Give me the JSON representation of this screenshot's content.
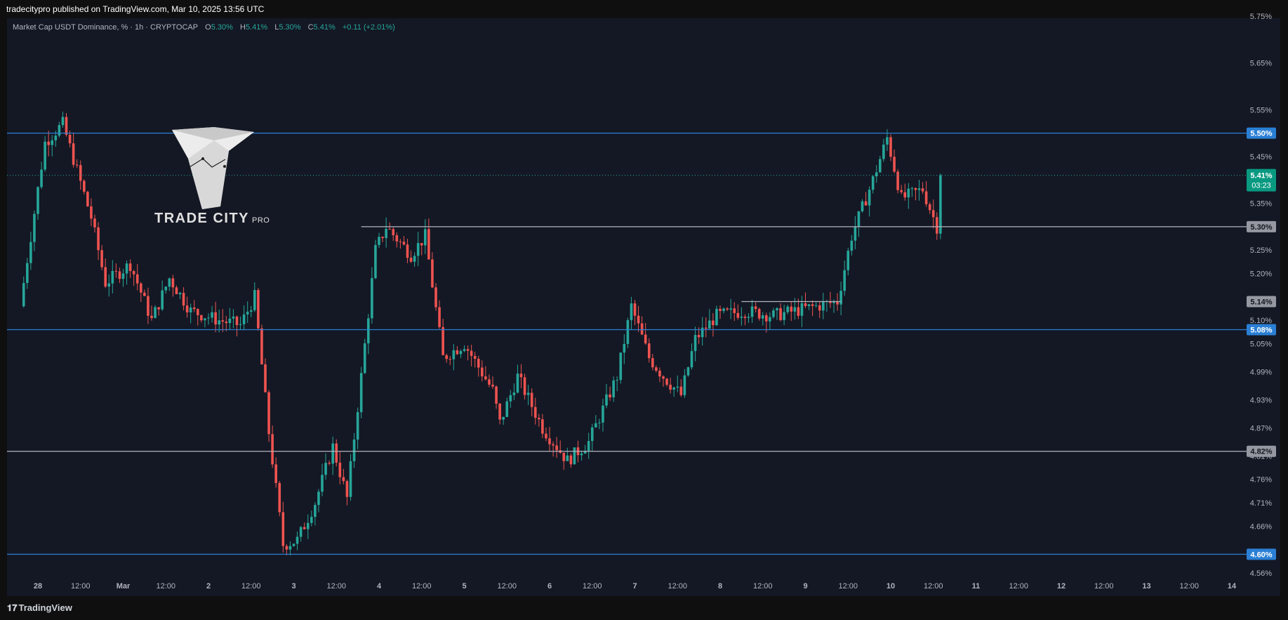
{
  "header": {
    "publish_line": "tradecitypro published on TradingView.com, Mar 10, 2025 13:56 UTC"
  },
  "legend": {
    "symbol": "Market Cap USDT Dominance, % · 1h · CRYPTOCAP",
    "o_label": "O",
    "o_value": "5.30%",
    "h_label": "H",
    "h_value": "5.41%",
    "l_label": "L",
    "l_value": "5.30%",
    "c_label": "C",
    "c_value": "5.41%",
    "change": "+0.11 (+2.01%)"
  },
  "watermark": {
    "brand": "TRADE CITY",
    "suffix": "PRO"
  },
  "footer": {
    "brand": "TradingView"
  },
  "colors": {
    "up": "#26a69a",
    "down": "#ef5350",
    "blue_line": "#2a7fd4",
    "gray_line": "#b2b5be",
    "background": "#141824",
    "axis_text": "#b2b5be",
    "current_price_bg": "#089981"
  },
  "chart_data": {
    "type": "candlestick",
    "y_axis_ticks": [
      "5.75%",
      "5.65%",
      "5.55%",
      "5.45%",
      "5.35%",
      "5.25%",
      "5.20%",
      "5.10%",
      "5.05%",
      "4.99%",
      "4.93%",
      "4.87%",
      "4.81%",
      "4.76%",
      "4.71%",
      "4.66%",
      "4.56%"
    ],
    "x_axis_ticks": [
      "28",
      "12:00",
      "Mar",
      "12:00",
      "2",
      "12:00",
      "3",
      "12:00",
      "4",
      "12:00",
      "5",
      "12:00",
      "6",
      "12:00",
      "7",
      "12:00",
      "8",
      "12:00",
      "9",
      "12:00",
      "10",
      "12:00",
      "11",
      "12:00",
      "12",
      "12:00",
      "13",
      "12:00",
      "14"
    ],
    "levels": [
      {
        "value": 5.5,
        "label": "5.50%",
        "style": "blue"
      },
      {
        "value": 5.3,
        "label": "5.30%",
        "style": "gray",
        "from_x": "Mar 3 19:00"
      },
      {
        "value": 5.14,
        "label": "5.14%",
        "style": "gray",
        "from_x": "Mar 8 06:00",
        "to_x": "Mar 9 10:00"
      },
      {
        "value": 5.08,
        "label": "5.08%",
        "style": "blue"
      },
      {
        "value": 4.82,
        "label": "4.82%",
        "style": "gray"
      },
      {
        "value": 4.6,
        "label": "4.60%",
        "style": "blue"
      }
    ],
    "current_price": {
      "value": 5.41,
      "label": "5.41%",
      "countdown": "03:23"
    },
    "series": [
      {
        "name": "Market Cap USDT Dominance",
        "pivots": [
          [
            "Feb 27 20:00",
            5.13
          ],
          [
            "Feb 28 01:00",
            5.38
          ],
          [
            "Feb 28 03:00",
            5.48
          ],
          [
            "Feb 28 08:00",
            5.52
          ],
          [
            "Feb 28 16:00",
            5.32
          ],
          [
            "Feb 28 20:00",
            5.18
          ],
          [
            "Mar 1 03:00",
            5.22
          ],
          [
            "Mar 1 09:00",
            5.1
          ],
          [
            "Mar 1 14:00",
            5.19
          ],
          [
            "Mar 1 20:00",
            5.12
          ],
          [
            "Mar 2 04:00",
            5.1
          ],
          [
            "Mar 2 10:00",
            5.09
          ],
          [
            "Mar 2 14:00",
            5.15
          ],
          [
            "Mar 2 18:00",
            4.86
          ],
          [
            "Mar 2 22:00",
            4.62
          ],
          [
            "Mar 3 02:00",
            4.63
          ],
          [
            "Mar 3 07:00",
            4.71
          ],
          [
            "Mar 3 12:00",
            4.83
          ],
          [
            "Mar 3 16:00",
            4.72
          ],
          [
            "Mar 3 20:00",
            4.98
          ],
          [
            "Mar 4 00:00",
            5.25
          ],
          [
            "Mar 4 03:00",
            5.3
          ],
          [
            "Mar 4 10:00",
            5.24
          ],
          [
            "Mar 4 14:00",
            5.28
          ],
          [
            "Mar 4 19:00",
            5.02
          ],
          [
            "Mar 5 01:00",
            5.05
          ],
          [
            "Mar 5 09:00",
            4.95
          ],
          [
            "Mar 5 11:00",
            4.88
          ],
          [
            "Mar 5 16:00",
            4.98
          ],
          [
            "Mar 5 23:00",
            4.87
          ],
          [
            "Mar 6 06:00",
            4.8
          ],
          [
            "Mar 6 12:00",
            4.84
          ],
          [
            "Mar 6 16:00",
            4.91
          ],
          [
            "Mar 6 20:00",
            4.98
          ],
          [
            "Mar 7 00:00",
            5.13
          ],
          [
            "Mar 7 05:00",
            5.02
          ],
          [
            "Mar 7 09:00",
            4.98
          ],
          [
            "Mar 7 14:00",
            4.94
          ],
          [
            "Mar 7 18:00",
            5.06
          ],
          [
            "Mar 8 00:00",
            5.11
          ],
          [
            "Mar 8 08:00",
            5.12
          ],
          [
            "Mar 8 16:00",
            5.11
          ],
          [
            "Mar 8 22:00",
            5.12
          ],
          [
            "Mar 9 10:00",
            5.14
          ],
          [
            "Mar 9 14:00",
            5.28
          ],
          [
            "Mar 9 20:00",
            5.4
          ],
          [
            "Mar 10 00:00",
            5.49
          ],
          [
            "Mar 10 04:00",
            5.36
          ],
          [
            "Mar 10 10:00",
            5.38
          ],
          [
            "Mar 10 14:00",
            5.3
          ],
          [
            "Mar 10 15:00",
            5.41
          ]
        ]
      }
    ]
  }
}
